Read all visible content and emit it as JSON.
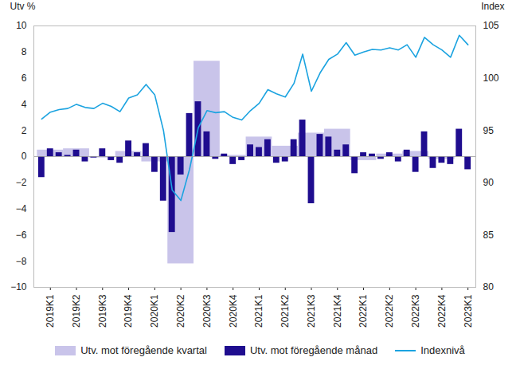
{
  "chart_data": {
    "type": "bar",
    "y_label": "Utv %",
    "y2_label": "Index",
    "categories": [
      null,
      "2019K1",
      null,
      null,
      "2019K2",
      null,
      null,
      "2019K3",
      null,
      null,
      "2019K4",
      null,
      null,
      "2020K1",
      null,
      null,
      "2020K2",
      null,
      null,
      "2020K3",
      null,
      null,
      "2020K4",
      null,
      null,
      "2021K1",
      null,
      null,
      "2021K2",
      null,
      null,
      "2021K3",
      null,
      null,
      "2021K4",
      null,
      null,
      "2022K1",
      null,
      null,
      "2022K2",
      null,
      null,
      "2022K3",
      null,
      null,
      "2022K4",
      null,
      null,
      "2023K1"
    ],
    "ylim": [
      -10,
      10
    ],
    "yticks": [
      -10,
      -8,
      -6,
      -4,
      -2,
      0,
      2,
      4,
      6,
      8,
      10
    ],
    "y2lim": [
      80,
      105
    ],
    "y2ticks": [
      80,
      85,
      90,
      95,
      100,
      105
    ],
    "legend": "bottom",
    "grid": false,
    "series": [
      {
        "name": "Utv. mot föregående kvartal",
        "type": "bar",
        "color": "#c9c4ea",
        "values": [
          null,
          0.5,
          null,
          null,
          0.6,
          null,
          null,
          -0.1,
          null,
          null,
          0.4,
          null,
          null,
          -0.4,
          null,
          null,
          -8.2,
          null,
          null,
          7.3,
          null,
          null,
          0.1,
          null,
          null,
          1.5,
          null,
          null,
          0.8,
          null,
          null,
          1.8,
          null,
          null,
          2.1,
          null,
          null,
          -0.3,
          null,
          null,
          0.2,
          null,
          null,
          0.4,
          null,
          null,
          -0.2,
          null,
          null,
          null
        ]
      },
      {
        "name": "Utv. mot föregående månad",
        "type": "bar",
        "color": "#1f0d8f",
        "values": [
          -1.6,
          0.6,
          0.3,
          0.1,
          0.5,
          -0.4,
          -0.1,
          0.6,
          -0.3,
          -0.5,
          1.2,
          0.3,
          1.0,
          -1.2,
          -3.4,
          -5.8,
          -1.4,
          3.3,
          4.2,
          1.9,
          -0.2,
          0.2,
          -0.6,
          -0.3,
          0.9,
          0.7,
          1.3,
          -0.5,
          -0.4,
          1.3,
          2.8,
          -3.6,
          1.7,
          1.5,
          0.5,
          0.9,
          -1.3,
          0.3,
          0.2,
          -0.2,
          0.3,
          -0.4,
          0.5,
          -1.2,
          1.9,
          -0.9,
          -0.5,
          -0.6,
          2.1,
          -1.0
        ]
      },
      {
        "name": "Indexnivå",
        "type": "line",
        "axis": "y2",
        "color": "#1ba3e0",
        "values": [
          96.1,
          96.75,
          97.0,
          97.1,
          97.5,
          97.2,
          97.1,
          97.6,
          97.3,
          96.8,
          98.1,
          98.4,
          99.4,
          98.4,
          95.0,
          89.3,
          88.3,
          91.3,
          95.25,
          96.9,
          96.7,
          96.8,
          96.25,
          96.0,
          96.9,
          97.6,
          98.9,
          98.5,
          98.2,
          99.5,
          102.3,
          98.75,
          100.5,
          101.8,
          102.3,
          103.4,
          102.2,
          102.5,
          102.75,
          102.7,
          102.9,
          102.7,
          103.2,
          102.0,
          103.9,
          103.2,
          102.7,
          102.0,
          104.1,
          103.2
        ]
      }
    ]
  }
}
